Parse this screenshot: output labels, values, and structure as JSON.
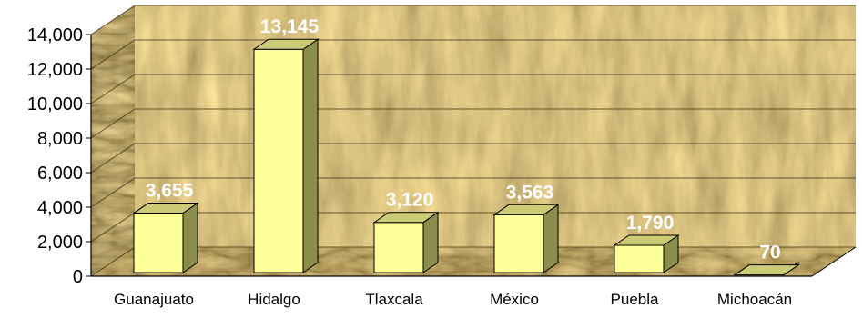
{
  "chart_data": {
    "type": "bar",
    "style": "3d-column",
    "title": "",
    "xlabel": "",
    "ylabel": "",
    "categories": [
      "Guanajuato",
      "Hidalgo",
      "Tlaxcala",
      "México",
      "Puebla",
      "Michoacán"
    ],
    "values": [
      3655,
      13145,
      3120,
      3563,
      1790,
      70
    ],
    "data_labels": [
      "3,655",
      "13,145",
      "3,120",
      "3,563",
      "1,790",
      "70"
    ],
    "y_ticks": [
      "0",
      "2,000",
      "4,000",
      "6,000",
      "8,000",
      "10,000",
      "12,000",
      "14,000"
    ],
    "ylim": [
      0,
      14000
    ],
    "grid": true,
    "legend": "none",
    "background": "straw-texture",
    "colors": {
      "bar_front": "#FFFF99",
      "bar_side": "#8E8E4C",
      "bar_top": "#CCCC77",
      "data_label": "#FFFFFF",
      "gridline": "#3A2E12"
    }
  }
}
